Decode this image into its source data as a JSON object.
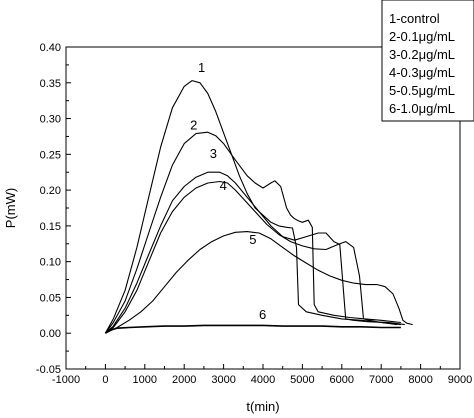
{
  "chart_data": {
    "type": "line",
    "xlabel": "t(min)",
    "ylabel": "P(mW)",
    "xlim": [
      -1000,
      9000
    ],
    "ylim": [
      -0.05,
      0.4
    ],
    "x_ticks": [
      -1000,
      0,
      1000,
      2000,
      3000,
      4000,
      5000,
      6000,
      7000,
      8000,
      9000
    ],
    "y_ticks": [
      -0.05,
      0.0,
      0.05,
      0.1,
      0.15,
      0.2,
      0.25,
      0.3,
      0.35,
      0.4
    ],
    "x_tick_labels": [
      "-1000",
      "0",
      "1000",
      "2000",
      "3000",
      "4000",
      "5000",
      "6000",
      "7000",
      "8000",
      "9000"
    ],
    "y_tick_labels": [
      "-0.05",
      "0.00",
      "0.05",
      "0.10",
      "0.15",
      "0.20",
      "0.25",
      "0.30",
      "0.35",
      "0.40"
    ],
    "grid": false,
    "legend": {
      "position": "top-right",
      "entries": [
        "1-control",
        "2-0.1μg/mL",
        "3-0.2μg/mL",
        "4-0.3μg/mL",
        "5-0.5μg/mL",
        "6-1.0μg/mL"
      ]
    },
    "series": [
      {
        "label": "1",
        "label_at": [
          2350,
          0.365
        ],
        "x": [
          0,
          200,
          500,
          800,
          1100,
          1400,
          1700,
          2000,
          2200,
          2400,
          2600,
          2800,
          3000,
          3200,
          3400,
          3600,
          3800,
          4000,
          4200,
          4400,
          4600,
          4750,
          4850,
          4900,
          5100,
          5500,
          6000,
          6500,
          7000,
          7400
        ],
        "y": [
          0.0,
          0.02,
          0.06,
          0.12,
          0.19,
          0.26,
          0.315,
          0.345,
          0.353,
          0.35,
          0.335,
          0.31,
          0.28,
          0.25,
          0.22,
          0.195,
          0.175,
          0.165,
          0.155,
          0.15,
          0.148,
          0.147,
          0.12,
          0.04,
          0.03,
          0.025,
          0.02,
          0.018,
          0.015,
          0.012
        ]
      },
      {
        "label": "2",
        "label_at": [
          2150,
          0.285
        ],
        "x": [
          0,
          200,
          500,
          800,
          1100,
          1400,
          1700,
          2000,
          2300,
          2600,
          2800,
          3000,
          3300,
          3600,
          3800,
          4000,
          4200,
          4300,
          4450,
          4600,
          4700,
          4800,
          4900,
          5000,
          5150,
          5250,
          5300,
          5400,
          5800,
          6200,
          6600,
          7000,
          7500
        ],
        "y": [
          0.0,
          0.015,
          0.045,
          0.09,
          0.14,
          0.19,
          0.235,
          0.265,
          0.279,
          0.281,
          0.276,
          0.265,
          0.242,
          0.22,
          0.21,
          0.203,
          0.21,
          0.213,
          0.205,
          0.175,
          0.165,
          0.16,
          0.157,
          0.155,
          0.158,
          0.148,
          0.04,
          0.03,
          0.025,
          0.022,
          0.02,
          0.018,
          0.015
        ]
      },
      {
        "label": "3",
        "label_at": [
          2650,
          0.245
        ],
        "x": [
          0,
          200,
          500,
          800,
          1100,
          1400,
          1700,
          2000,
          2300,
          2600,
          2900,
          3100,
          3300,
          3600,
          3900,
          4200,
          4500,
          4800,
          5100,
          5400,
          5600,
          5800,
          5950,
          6100,
          6300,
          6700,
          7200,
          7600
        ],
        "y": [
          0.0,
          0.01,
          0.035,
          0.07,
          0.11,
          0.15,
          0.185,
          0.205,
          0.218,
          0.225,
          0.225,
          0.22,
          0.21,
          0.19,
          0.17,
          0.15,
          0.135,
          0.13,
          0.135,
          0.14,
          0.14,
          0.128,
          0.124,
          0.02,
          0.018,
          0.016,
          0.015,
          0.012
        ]
      },
      {
        "label": "4",
        "label_at": [
          2900,
          0.2
        ],
        "x": [
          0,
          200,
          500,
          800,
          1100,
          1400,
          1700,
          2000,
          2300,
          2600,
          2900,
          3100,
          3300,
          3500,
          3800,
          4100,
          4400,
          4700,
          5000,
          5300,
          5600,
          5900,
          6100,
          6300,
          6450,
          6550,
          6700,
          7000,
          7500
        ],
        "y": [
          0.0,
          0.008,
          0.03,
          0.06,
          0.1,
          0.14,
          0.17,
          0.19,
          0.203,
          0.21,
          0.212,
          0.21,
          0.2,
          0.188,
          0.17,
          0.152,
          0.138,
          0.128,
          0.122,
          0.118,
          0.117,
          0.124,
          0.128,
          0.12,
          0.08,
          0.02,
          0.018,
          0.015,
          0.012
        ]
      },
      {
        "label": "5",
        "label_at": [
          3650,
          0.125
        ],
        "x": [
          0,
          300,
          600,
          900,
          1200,
          1500,
          1800,
          2100,
          2400,
          2700,
          3000,
          3300,
          3600,
          3900,
          4200,
          4500,
          4800,
          5100,
          5400,
          5700,
          6000,
          6300,
          6600,
          6900,
          7100,
          7300,
          7450,
          7550,
          7650,
          7800
        ],
        "y": [
          0.0,
          0.008,
          0.018,
          0.03,
          0.045,
          0.065,
          0.085,
          0.102,
          0.117,
          0.128,
          0.136,
          0.141,
          0.142,
          0.14,
          0.132,
          0.12,
          0.108,
          0.098,
          0.088,
          0.08,
          0.074,
          0.07,
          0.068,
          0.068,
          0.065,
          0.055,
          0.035,
          0.018,
          0.014,
          0.012
        ]
      },
      {
        "label": "6",
        "label_at": [
          3900,
          0.02
        ],
        "x": [
          0,
          100,
          300,
          600,
          1000,
          1500,
          2000,
          2500,
          3000,
          3500,
          4000,
          4500,
          5000,
          5500,
          6000,
          6500,
          7000,
          7500
        ],
        "y": [
          0.0,
          0.004,
          0.007,
          0.008,
          0.009,
          0.01,
          0.01,
          0.011,
          0.011,
          0.011,
          0.011,
          0.01,
          0.01,
          0.01,
          0.009,
          0.009,
          0.008,
          0.008
        ]
      }
    ]
  }
}
